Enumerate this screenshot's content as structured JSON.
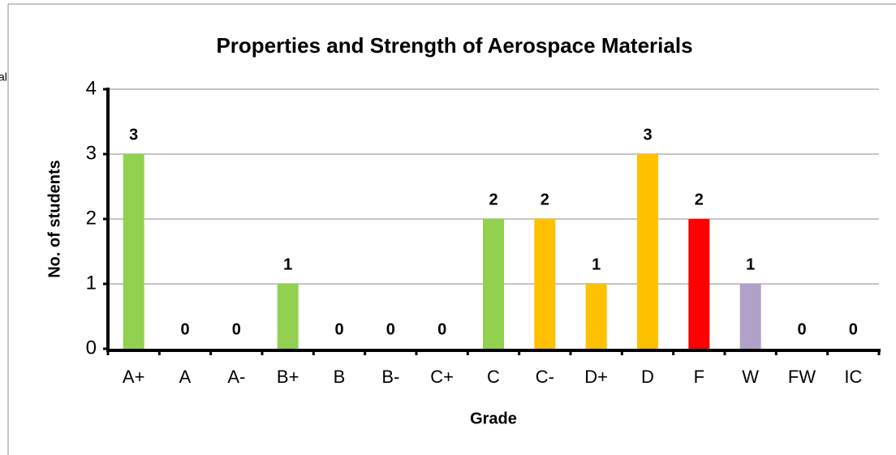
{
  "chart_data": {
    "type": "bar",
    "title": "Properties and Strength of Aerospace Materials",
    "annotation": "al",
    "x_label": "Grade",
    "y_label": "No. of students",
    "categories": [
      "A+",
      "A",
      "A-",
      "B+",
      "B",
      "B-",
      "C+",
      "C",
      "C-",
      "D+",
      "D",
      "F",
      "W",
      "FW",
      "IC"
    ],
    "values": [
      3,
      0,
      0,
      1,
      0,
      0,
      0,
      2,
      2,
      1,
      3,
      2,
      1,
      0,
      0
    ],
    "colors": [
      "#92d050",
      "#92d050",
      "#92d050",
      "#92d050",
      "#92d050",
      "#92d050",
      "#92d050",
      "#92d050",
      "#ffc000",
      "#ffc000",
      "#ffc000",
      "#ff0000",
      "#b1a0c7",
      "#b1a0c7",
      "#b1a0c7"
    ],
    "ylim": [
      0,
      4
    ],
    "yticks": [
      0,
      1,
      2,
      3,
      4
    ],
    "grid": true
  }
}
